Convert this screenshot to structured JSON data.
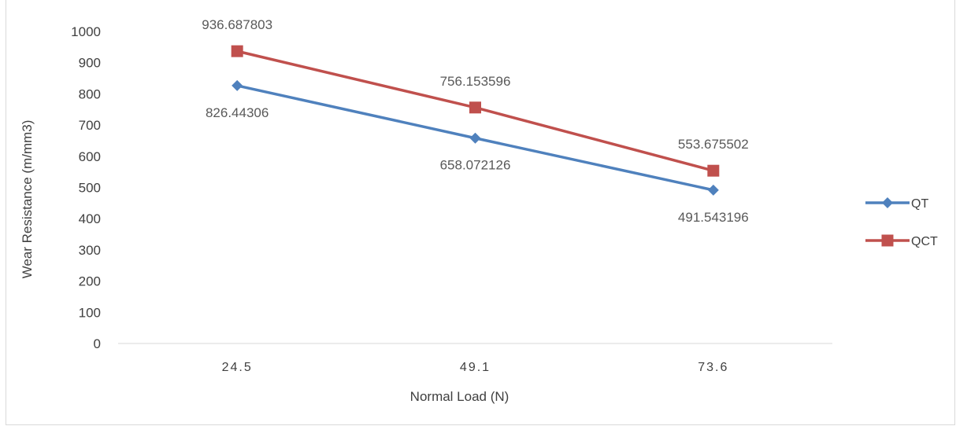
{
  "chart_data": {
    "type": "line",
    "title": "",
    "xlabel": "Normal Load (N)",
    "ylabel": "Wear Resistance (m/mm3)",
    "categories": [
      "24.5",
      "49.1",
      "73.6"
    ],
    "ylim": [
      0,
      1000
    ],
    "yticks": [
      "0",
      "100",
      "200",
      "300",
      "400",
      "500",
      "600",
      "700",
      "800",
      "900",
      "1000"
    ],
    "grid": false,
    "legend_position": "right",
    "series": [
      {
        "name": "QT",
        "values": [
          826.44306,
          658.072126,
          491.543196
        ],
        "labels": [
          "826.44306",
          "658.072126",
          "491.543196"
        ],
        "color": "#4f81bd",
        "marker": "diamond"
      },
      {
        "name": "QCT",
        "values": [
          936.687803,
          756.153596,
          553.675502
        ],
        "labels": [
          "936.687803",
          "756.153596",
          "553.675502"
        ],
        "color": "#c0504d",
        "marker": "square"
      }
    ]
  }
}
